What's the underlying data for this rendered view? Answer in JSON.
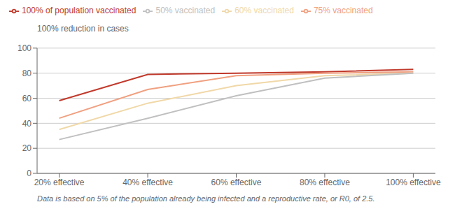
{
  "chart_data": {
    "type": "line",
    "y_label": "100% reduction in cases",
    "annotations": [
      "Data is based on 5% of the population already being infected and a reproductive rate, or R0, of 2.5."
    ],
    "x": [
      20,
      40,
      60,
      80,
      100
    ],
    "xlim": [
      15,
      105
    ],
    "xticks": [
      {
        "value": 20,
        "label": "20% effective"
      },
      {
        "value": 40,
        "label": "40% effective"
      },
      {
        "value": 60,
        "label": "60% effective"
      },
      {
        "value": 80,
        "label": "80% effective"
      },
      {
        "value": 100,
        "label": "100% effective"
      }
    ],
    "ylim": [
      0,
      100
    ],
    "yticks": [
      0,
      20,
      40,
      60,
      80,
      100
    ],
    "grid": true,
    "legend": "upper left",
    "series": [
      {
        "name": "100% of population vaccinated",
        "color": "#c0392b",
        "values": [
          58,
          79,
          80,
          81,
          83
        ]
      },
      {
        "name": "75% vaccinated",
        "color": "#f0a080",
        "values": [
          44,
          67,
          78,
          80,
          81
        ]
      },
      {
        "name": "60% vaccinated",
        "color": "#f0d8a8",
        "values": [
          35,
          56,
          70,
          78,
          80
        ]
      },
      {
        "name": "50% vaccinated",
        "color": "#c0c0c0",
        "values": [
          27,
          44,
          62,
          76,
          80
        ]
      }
    ]
  }
}
